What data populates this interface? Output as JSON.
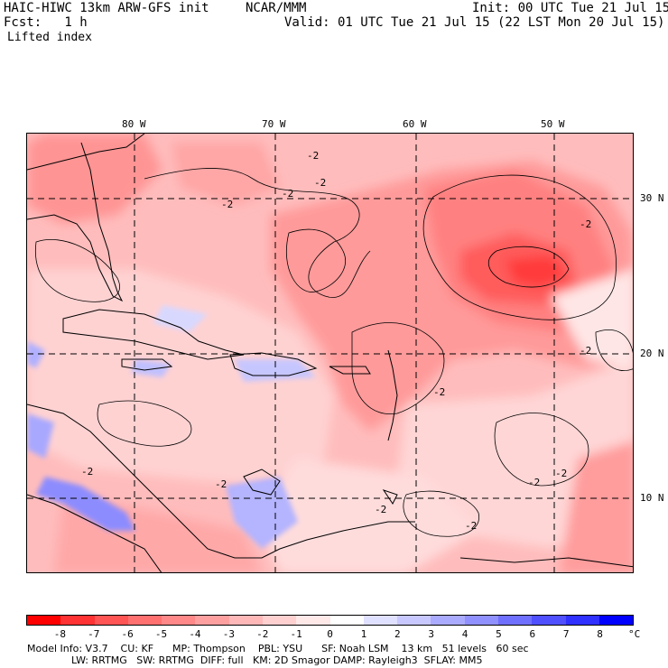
{
  "header": {
    "model": "HAIC-HIWC 13km ARW-GFS init",
    "org": "NCAR/MMM",
    "init": "Init: 00 UTC Tue 21 Jul 15",
    "fcst": "Fcst:   1 h",
    "valid": "Valid: 01 UTC Tue 21 Jul 15 (22 LST Mon 20 Jul 15)",
    "field": "Lifted index"
  },
  "axes": {
    "lon_labels": [
      "80 W",
      "70 W",
      "60 W",
      "50 W"
    ],
    "lat_labels": [
      "30 N",
      "20 N",
      "10 N"
    ]
  },
  "contour_labels": [
    "-2",
    "-2",
    "-2",
    "-2",
    "-2",
    "-2",
    "-2",
    "-2",
    "-2",
    "-2",
    "-2",
    "-2",
    "-2"
  ],
  "colorbar": {
    "ticks": [
      "-8",
      "-7",
      "-6",
      "-5",
      "-4",
      "-3",
      "-2",
      "-1",
      "0",
      "1",
      "2",
      "3",
      "4",
      "5",
      "6",
      "7",
      "8"
    ],
    "unit": "°C",
    "colors": [
      "#ff0000",
      "#ff3333",
      "#ff5555",
      "#ff7070",
      "#ff8888",
      "#ffa0a0",
      "#ffb8b8",
      "#ffd0d0",
      "#ffe8e8",
      "#ffffff",
      "#e0e0ff",
      "#c8c8ff",
      "#aaaaff",
      "#9090ff",
      "#7070ff",
      "#5050ff",
      "#3030ff",
      "#0000ff"
    ]
  },
  "footer": {
    "line1": "Model Info: V3.7    CU: KF      MP: Thompson    PBL: YSU      SF: Noah LSM    13 km   51 levels   60 sec",
    "line2": "              LW: RRTMG   SW: RRTMG  DIFF: full   KM: 2D Smagor DAMP: Rayleigh3  SFLAY: MM5"
  }
}
